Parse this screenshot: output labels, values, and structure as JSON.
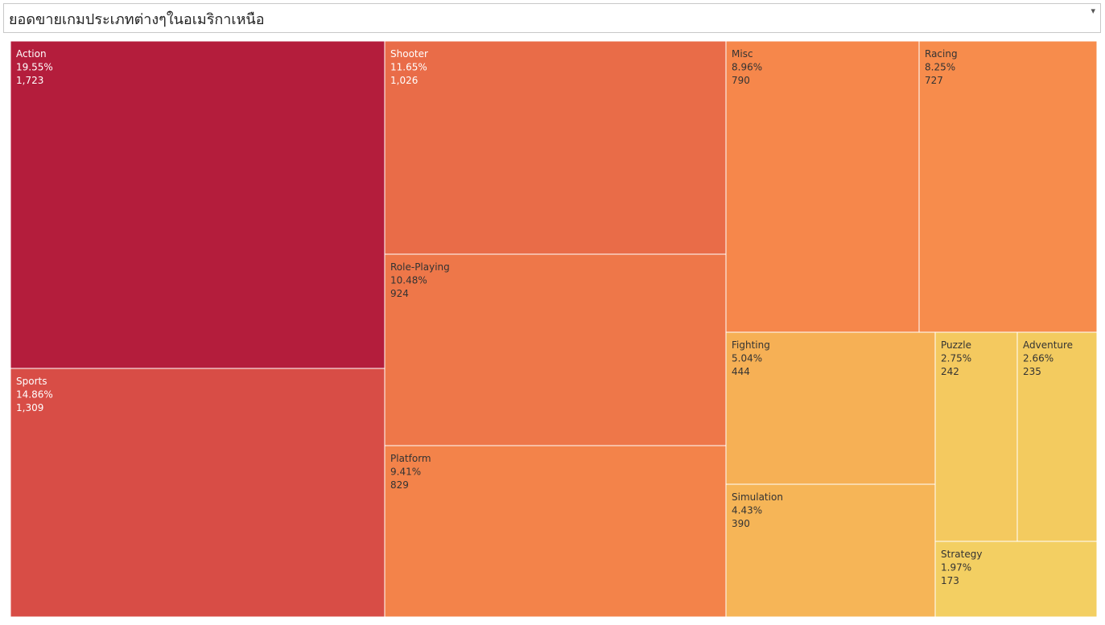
{
  "header": {
    "title": "ยอดขายเกมประเภทต่างๆในอเมริกาเหนือ"
  },
  "chart_data": {
    "type": "treemap",
    "title": "ยอดขายเกมประเภทต่างๆในอเมริกาเหนือ",
    "items": [
      {
        "name": "Action",
        "percent": "19.55%",
        "value": "1,723",
        "color": "#b41d3c",
        "text_color": "#ffffff"
      },
      {
        "name": "Sports",
        "percent": "14.86%",
        "value": "1,309",
        "color": "#d84d46",
        "text_color": "#ffffff"
      },
      {
        "name": "Shooter",
        "percent": "11.65%",
        "value": "1,026",
        "color": "#e96c48",
        "text_color": "#ffffff"
      },
      {
        "name": "Role-Playing",
        "percent": "10.48%",
        "value": "924",
        "color": "#ee7749",
        "text_color": "#333333"
      },
      {
        "name": "Platform",
        "percent": "9.41%",
        "value": "829",
        "color": "#f3834a",
        "text_color": "#333333"
      },
      {
        "name": "Misc",
        "percent": "8.96%",
        "value": "790",
        "color": "#f6874b",
        "text_color": "#333333"
      },
      {
        "name": "Racing",
        "percent": "8.25%",
        "value": "727",
        "color": "#f78c4c",
        "text_color": "#333333"
      },
      {
        "name": "Fighting",
        "percent": "5.04%",
        "value": "444",
        "color": "#f6b055",
        "text_color": "#333333"
      },
      {
        "name": "Simulation",
        "percent": "4.43%",
        "value": "390",
        "color": "#f6b557",
        "text_color": "#333333"
      },
      {
        "name": "Puzzle",
        "percent": "2.75%",
        "value": "242",
        "color": "#f4c95f",
        "text_color": "#333333"
      },
      {
        "name": "Adventure",
        "percent": "2.66%",
        "value": "235",
        "color": "#f3cb5f",
        "text_color": "#333333"
      },
      {
        "name": "Strategy",
        "percent": "1.97%",
        "value": "173",
        "color": "#f3cf62",
        "text_color": "#333333"
      }
    ]
  }
}
